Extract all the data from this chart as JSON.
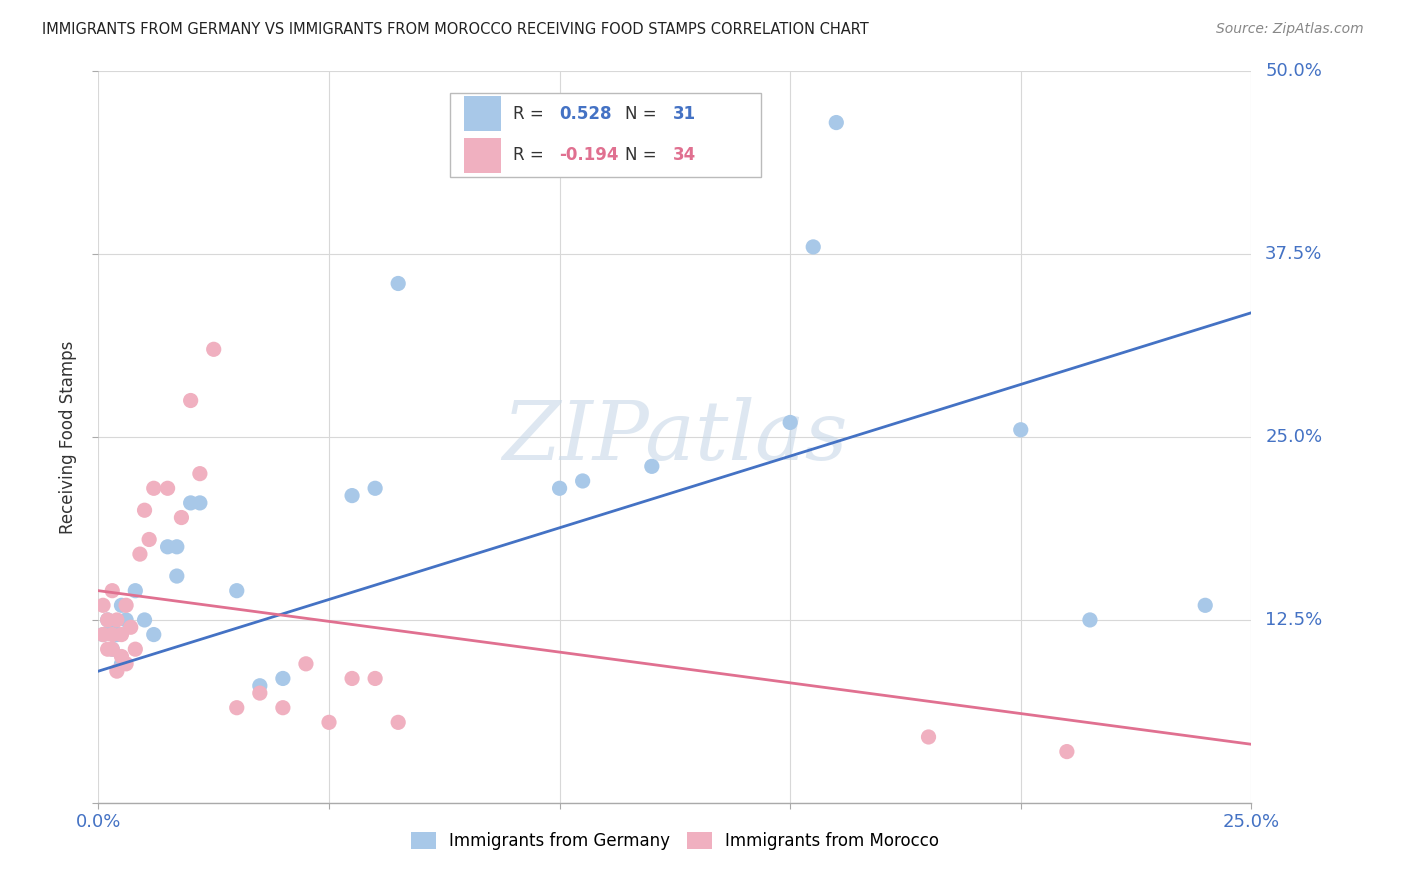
{
  "title": "IMMIGRANTS FROM GERMANY VS IMMIGRANTS FROM MOROCCO RECEIVING FOOD STAMPS CORRELATION CHART",
  "source": "Source: ZipAtlas.com",
  "ylabel": "Receiving Food Stamps",
  "xlim": [
    0.0,
    0.25
  ],
  "ylim": [
    0.0,
    0.5
  ],
  "xticks": [
    0.0,
    0.05,
    0.1,
    0.15,
    0.2,
    0.25
  ],
  "yticks": [
    0.0,
    0.125,
    0.25,
    0.375,
    0.5
  ],
  "germany_color": "#a8c8e8",
  "morocco_color": "#f0b0c0",
  "germany_line_color": "#4472c4",
  "morocco_line_color": "#e07090",
  "legend_R_germany": "0.528",
  "legend_N_germany": "31",
  "legend_R_morocco": "-0.194",
  "legend_N_morocco": "34",
  "watermark": "ZIPatlas",
  "background_color": "#ffffff",
  "grid_color": "#d8d8d8",
  "germany_x": [
    0.001,
    0.002,
    0.003,
    0.003,
    0.004,
    0.005,
    0.005,
    0.006,
    0.008,
    0.01,
    0.012,
    0.015,
    0.017,
    0.017,
    0.02,
    0.022,
    0.03,
    0.035,
    0.04,
    0.055,
    0.06,
    0.065,
    0.1,
    0.105,
    0.12,
    0.15,
    0.155,
    0.16,
    0.2,
    0.215,
    0.24
  ],
  "germany_y": [
    0.115,
    0.125,
    0.105,
    0.12,
    0.115,
    0.135,
    0.095,
    0.125,
    0.145,
    0.125,
    0.115,
    0.175,
    0.155,
    0.175,
    0.205,
    0.205,
    0.145,
    0.08,
    0.085,
    0.21,
    0.215,
    0.355,
    0.215,
    0.22,
    0.23,
    0.26,
    0.38,
    0.465,
    0.255,
    0.125,
    0.135
  ],
  "morocco_x": [
    0.001,
    0.001,
    0.002,
    0.002,
    0.003,
    0.003,
    0.003,
    0.004,
    0.004,
    0.005,
    0.005,
    0.006,
    0.006,
    0.007,
    0.008,
    0.009,
    0.01,
    0.011,
    0.012,
    0.015,
    0.018,
    0.02,
    0.022,
    0.025,
    0.03,
    0.035,
    0.04,
    0.045,
    0.05,
    0.055,
    0.06,
    0.065,
    0.18,
    0.21
  ],
  "morocco_y": [
    0.115,
    0.135,
    0.105,
    0.125,
    0.105,
    0.115,
    0.145,
    0.09,
    0.125,
    0.1,
    0.115,
    0.095,
    0.135,
    0.12,
    0.105,
    0.17,
    0.2,
    0.18,
    0.215,
    0.215,
    0.195,
    0.275,
    0.225,
    0.31,
    0.065,
    0.075,
    0.065,
    0.095,
    0.055,
    0.085,
    0.085,
    0.055,
    0.045,
    0.035
  ],
  "germany_line_x": [
    0.0,
    0.25
  ],
  "germany_line_y": [
    0.09,
    0.335
  ],
  "morocco_line_x": [
    0.0,
    0.25
  ],
  "morocco_line_y": [
    0.145,
    0.04
  ]
}
